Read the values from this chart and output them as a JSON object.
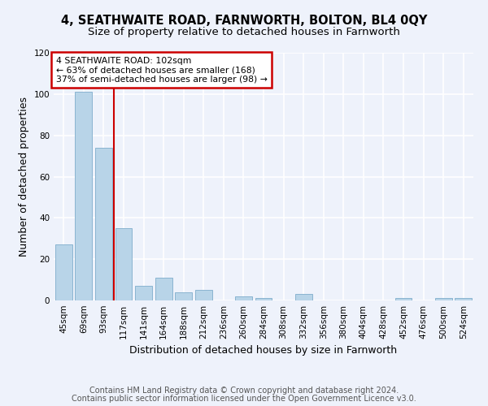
{
  "title": "4, SEATHWAITE ROAD, FARNWORTH, BOLTON, BL4 0QY",
  "subtitle": "Size of property relative to detached houses in Farnworth",
  "xlabel": "Distribution of detached houses by size in Farnworth",
  "ylabel": "Number of detached properties",
  "categories": [
    "45sqm",
    "69sqm",
    "93sqm",
    "117sqm",
    "141sqm",
    "164sqm",
    "188sqm",
    "212sqm",
    "236sqm",
    "260sqm",
    "284sqm",
    "308sqm",
    "332sqm",
    "356sqm",
    "380sqm",
    "404sqm",
    "428sqm",
    "452sqm",
    "476sqm",
    "500sqm",
    "524sqm"
  ],
  "values": [
    27,
    101,
    74,
    35,
    7,
    11,
    4,
    5,
    0,
    2,
    1,
    0,
    3,
    0,
    0,
    0,
    0,
    1,
    0,
    1,
    1
  ],
  "bar_color": "#b8d4e8",
  "bar_edge_color": "#8ab4d0",
  "red_line_label": "4 SEATHWAITE ROAD: 102sqm",
  "annotation_line1": "← 63% of detached houses are smaller (168)",
  "annotation_line2": "37% of semi-detached houses are larger (98) →",
  "annotation_box_color": "#ffffff",
  "annotation_box_edge": "#cc0000",
  "red_line_color": "#cc0000",
  "ylim": [
    0,
    120
  ],
  "yticks": [
    0,
    20,
    40,
    60,
    80,
    100,
    120
  ],
  "footer1": "Contains HM Land Registry data © Crown copyright and database right 2024.",
  "footer2": "Contains public sector information licensed under the Open Government Licence v3.0.",
  "bg_color": "#eef2fb",
  "grid_color": "#ffffff",
  "title_fontsize": 10.5,
  "subtitle_fontsize": 9.5,
  "axis_label_fontsize": 9,
  "tick_fontsize": 7.5,
  "footer_fontsize": 7.0
}
